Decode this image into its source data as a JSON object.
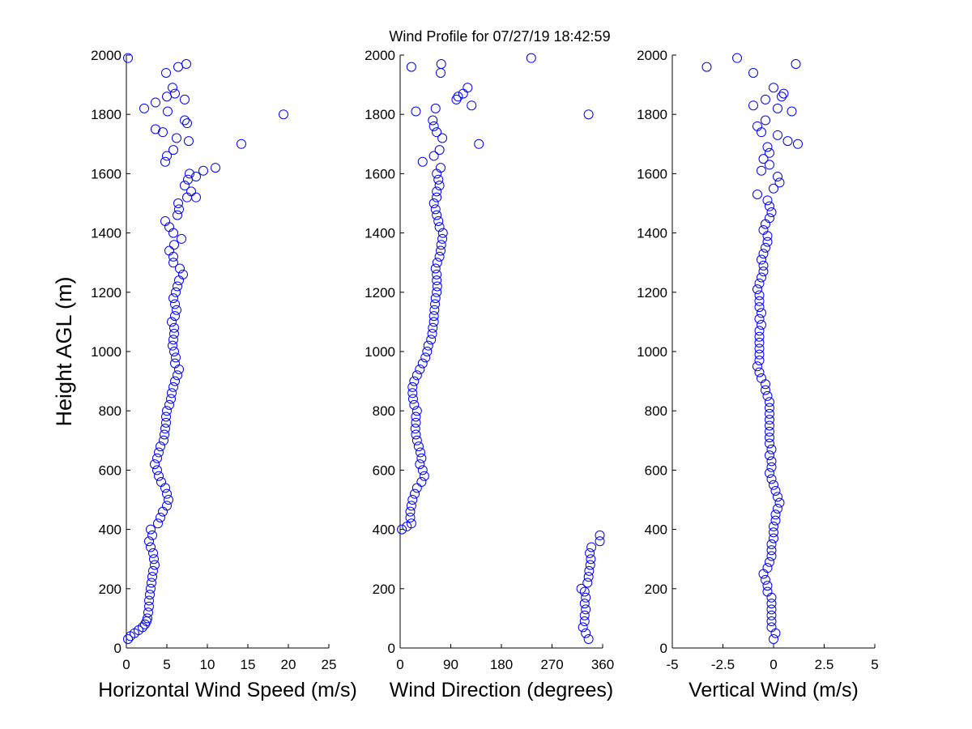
{
  "title": "Wind Profile for  07/27/19 18:42:59",
  "chart_data": [
    {
      "type": "scatter",
      "xlabel": "Horizontal Wind Speed (m/s)",
      "ylabel": "Height AGL (m)",
      "color": "#0000ff",
      "xlim": [
        0,
        25
      ],
      "xticks": [
        0,
        5,
        10,
        15,
        20,
        25
      ],
      "ylim": [
        0,
        2000
      ],
      "yticks": [
        0,
        200,
        400,
        600,
        800,
        1000,
        1200,
        1400,
        1600,
        1800,
        2000
      ],
      "x": [
        0.2,
        0.5,
        1,
        1.5,
        2,
        2.3,
        2.5,
        2.6,
        2.7,
        2.8,
        2.8,
        2.9,
        3,
        3.1,
        3.2,
        3.3,
        3.5,
        3.4,
        3.3,
        3.0,
        2.8,
        3.2,
        3.0,
        3.9,
        4.2,
        4.5,
        5,
        5.2,
        5.0,
        4.8,
        4.3,
        4.0,
        3.8,
        3.5,
        3.8,
        4.0,
        4.2,
        4.6,
        4.7,
        4.8,
        4.9,
        4.9,
        5.0,
        5.3,
        5.5,
        5.6,
        5.8,
        6.0,
        6.3,
        6.5,
        6.0,
        6.1,
        5.9,
        5.7,
        5.8,
        5.9,
        5.9,
        5.6,
        6.0,
        6.2,
        6.0,
        5.8,
        6.1,
        6.3,
        6.5,
        7.0,
        6.6,
        5.8,
        5.8,
        5.3,
        5.9,
        6.8,
        5.8,
        5.3,
        4.8,
        6.3,
        6.5,
        6.4,
        7.5,
        8,
        7.2,
        7.6,
        7.8,
        9.5,
        11,
        8.6,
        8.6,
        4.8,
        5,
        5.8,
        14.2,
        7.7,
        6.2,
        4.5,
        3.6,
        7.5,
        7.2,
        19.4,
        5.1,
        2.2,
        3.6,
        7.2,
        5,
        6,
        5.7,
        4.9,
        6.4,
        7.4,
        0.2
      ],
      "y": [
        30,
        40,
        50,
        60,
        70,
        80,
        90,
        100,
        120,
        140,
        160,
        180,
        200,
        220,
        240,
        260,
        280,
        300,
        320,
        340,
        360,
        380,
        400,
        420,
        440,
        460,
        480,
        500,
        520,
        540,
        560,
        580,
        600,
        620,
        640,
        660,
        680,
        700,
        720,
        740,
        760,
        780,
        800,
        820,
        840,
        860,
        880,
        900,
        920,
        940,
        960,
        980,
        1000,
        1020,
        1040,
        1060,
        1080,
        1100,
        1120,
        1140,
        1160,
        1180,
        1200,
        1220,
        1240,
        1260,
        1280,
        1300,
        1320,
        1340,
        1360,
        1380,
        1400,
        1420,
        1440,
        1460,
        1480,
        1500,
        1520,
        1540,
        1560,
        1580,
        1600,
        1610,
        1620,
        1590,
        1520,
        1640,
        1660,
        1680,
        1700,
        1710,
        1720,
        1740,
        1750,
        1770,
        1780,
        1800,
        1810,
        1820,
        1840,
        1850,
        1860,
        1870,
        1890,
        1940,
        1960,
        1970,
        1990
      ]
    },
    {
      "type": "scatter",
      "xlabel": "Wind Direction (degrees)",
      "color": "#0000ff",
      "xlim": [
        0,
        360
      ],
      "xticks": [
        0,
        90,
        180,
        270,
        360
      ],
      "ylim": [
        0,
        2000
      ],
      "yticks": [
        0,
        200,
        400,
        600,
        800,
        1000,
        1200,
        1400,
        1600,
        1800,
        2000
      ],
      "x": [
        335,
        330,
        325,
        328,
        328,
        330,
        328,
        330,
        328,
        322,
        333,
        335,
        336,
        338,
        339,
        337,
        340,
        355,
        355,
        3,
        12,
        20,
        18,
        18,
        20,
        22,
        26,
        30,
        38,
        43,
        40,
        35,
        38,
        36,
        33,
        30,
        28,
        27,
        28,
        28,
        30,
        25,
        23,
        22,
        22,
        25,
        30,
        35,
        40,
        45,
        48,
        50,
        55,
        57,
        58,
        60,
        60,
        61,
        62,
        63,
        65,
        66,
        65,
        65,
        63,
        66,
        70,
        72,
        73,
        75,
        76,
        70,
        68,
        65,
        63,
        60,
        65,
        65,
        70,
        68,
        65,
        72,
        40,
        60,
        70,
        140,
        75,
        65,
        60,
        58,
        335,
        28,
        63,
        127,
        100,
        103,
        112,
        120,
        72,
        20,
        73,
        233
      ],
      "y": [
        30,
        50,
        70,
        90,
        110,
        130,
        150,
        170,
        190,
        200,
        220,
        240,
        260,
        280,
        300,
        320,
        340,
        360,
        380,
        400,
        410,
        420,
        440,
        460,
        480,
        500,
        520,
        540,
        560,
        580,
        600,
        620,
        640,
        660,
        680,
        700,
        720,
        740,
        760,
        780,
        800,
        820,
        840,
        860,
        880,
        900,
        920,
        940,
        960,
        980,
        1000,
        1020,
        1040,
        1060,
        1080,
        1100,
        1120,
        1140,
        1160,
        1180,
        1200,
        1220,
        1240,
        1260,
        1280,
        1300,
        1320,
        1340,
        1360,
        1380,
        1400,
        1420,
        1440,
        1460,
        1480,
        1500,
        1520,
        1540,
        1560,
        1580,
        1600,
        1620,
        1640,
        1660,
        1680,
        1700,
        1720,
        1740,
        1760,
        1780,
        1800,
        1810,
        1820,
        1830,
        1850,
        1860,
        1870,
        1890,
        1940,
        1960,
        1970,
        1990
      ]
    },
    {
      "type": "scatter",
      "xlabel": "Vertical Wind (m/s)",
      "color": "#0000ff",
      "xlim": [
        -5,
        5
      ],
      "xticks": [
        -5,
        -2.5,
        0,
        2.5,
        5
      ],
      "ylim": [
        0,
        2000
      ],
      "yticks": [
        0,
        200,
        400,
        600,
        800,
        1000,
        1200,
        1400,
        1600,
        1800,
        2000
      ],
      "x": [
        0,
        0.1,
        -0.1,
        -0.1,
        -0.1,
        -0.1,
        -0.1,
        -0.1,
        -0.3,
        -0.3,
        -0.4,
        -0.5,
        -0.3,
        -0.2,
        -0.1,
        -0.1,
        -0.1,
        0,
        0,
        0,
        0.1,
        0.1,
        0.2,
        0.3,
        0.2,
        0.1,
        0,
        -0.1,
        -0.2,
        -0.1,
        -0.1,
        -0.2,
        -0.1,
        -0.2,
        -0.2,
        -0.2,
        -0.2,
        -0.2,
        -0.2,
        -0.2,
        -0.2,
        -0.3,
        -0.4,
        -0.4,
        -0.6,
        -0.7,
        -0.8,
        -0.7,
        -0.7,
        -0.7,
        -0.7,
        -0.7,
        -0.7,
        -0.6,
        -0.7,
        -0.6,
        -0.7,
        -0.7,
        -0.7,
        -0.8,
        -0.7,
        -0.6,
        -0.5,
        -0.5,
        -0.6,
        -0.5,
        -0.4,
        -0.3,
        -0.3,
        -0.5,
        -0.4,
        -0.2,
        -0.1,
        -0.2,
        -0.3,
        -0.8,
        0,
        0.3,
        0.2,
        -0.6,
        -0.2,
        -0.5,
        -0.2,
        -0.3,
        1.2,
        0.7,
        0.2,
        -0.6,
        -0.8,
        -0.4,
        0.9,
        0.2,
        -1,
        -0.4,
        0.4,
        0.5,
        0,
        -1,
        -3.3,
        1.1,
        -1.8
      ],
      "y": [
        30,
        50,
        70,
        90,
        110,
        130,
        150,
        170,
        190,
        210,
        230,
        250,
        270,
        290,
        310,
        330,
        350,
        370,
        390,
        410,
        430,
        450,
        470,
        490,
        510,
        530,
        550,
        570,
        590,
        610,
        630,
        650,
        670,
        690,
        710,
        730,
        750,
        770,
        790,
        810,
        830,
        850,
        870,
        890,
        910,
        930,
        950,
        970,
        990,
        1010,
        1030,
        1050,
        1070,
        1090,
        1110,
        1130,
        1150,
        1170,
        1190,
        1210,
        1230,
        1250,
        1270,
        1290,
        1310,
        1330,
        1350,
        1370,
        1390,
        1410,
        1430,
        1450,
        1470,
        1490,
        1510,
        1530,
        1550,
        1570,
        1590,
        1610,
        1630,
        1650,
        1670,
        1690,
        1700,
        1710,
        1730,
        1740,
        1760,
        1780,
        1810,
        1820,
        1830,
        1850,
        1860,
        1870,
        1890,
        1940,
        1960,
        1970,
        1990
      ]
    }
  ]
}
